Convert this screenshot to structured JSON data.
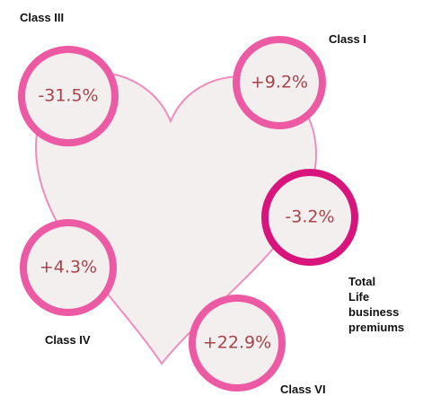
{
  "nodes": [
    {
      "label": "Class III",
      "value": "-31.5%"
    },
    {
      "label": "Class I",
      "value": "+9.2%"
    },
    {
      "label": [
        "Total",
        "Life",
        "business",
        "premiums"
      ],
      "value": "-3.2%"
    },
    {
      "label": "Class IV",
      "value": "+4.3%"
    },
    {
      "label": "Class VI",
      "value": "+22.9%"
    }
  ]
}
